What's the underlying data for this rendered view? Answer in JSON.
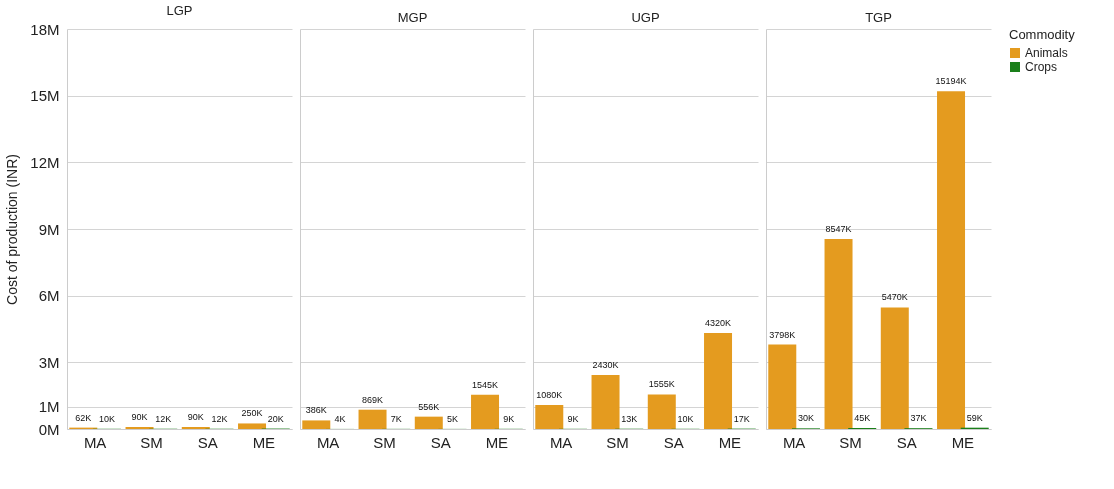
{
  "chart_data": [
    {
      "type": "bar",
      "title": "LGP",
      "ylabel": "Cost of production (INR)",
      "categories": [
        "MA",
        "SM",
        "SA",
        "ME"
      ],
      "series": [
        {
          "color": "#e49b1f",
          "values": [
            62000,
            90000,
            90000,
            250000
          ],
          "value_labels": [
            "62K",
            "90K",
            "90K",
            "250K"
          ]
        },
        {
          "color": "#1a7f1a",
          "values": [
            10000,
            12000,
            12000,
            20000
          ],
          "value_labels": [
            "10K",
            "12K",
            "12K",
            "20K"
          ]
        }
      ],
      "ylim": [
        0,
        18000000
      ],
      "yticks": [
        {
          "value": 0,
          "label": "0M"
        },
        {
          "value": 1000000,
          "label": "1M"
        },
        {
          "value": 3000000,
          "label": "3M"
        },
        {
          "value": 6000000,
          "label": "6M"
        },
        {
          "value": 9000000,
          "label": "9M"
        },
        {
          "value": 12000000,
          "label": "12M"
        },
        {
          "value": 15000000,
          "label": "15M"
        },
        {
          "value": 18000000,
          "label": "18M"
        }
      ],
      "grid": "y"
    },
    {
      "type": "bar",
      "title": "MGP",
      "categories": [
        "MA",
        "SM",
        "SA",
        "ME"
      ],
      "series": [
        {
          "color": "#e49b1f",
          "values": [
            386000,
            869000,
            556000,
            1545000
          ],
          "value_labels": [
            "386K",
            "869K",
            "556K",
            "1545K"
          ]
        },
        {
          "color": "#1a7f1a",
          "values": [
            4000,
            7000,
            5000,
            9000
          ],
          "value_labels": [
            "4K",
            "7K",
            "5K",
            "9K"
          ]
        }
      ],
      "ylim": [
        0,
        18000000
      ],
      "yticks": [
        {
          "value": 0,
          "label": null
        },
        {
          "value": 1000000,
          "label": null
        },
        {
          "value": 3000000,
          "label": null
        },
        {
          "value": 6000000,
          "label": null
        },
        {
          "value": 9000000,
          "label": null
        },
        {
          "value": 12000000,
          "label": null
        },
        {
          "value": 15000000,
          "label": null
        },
        {
          "value": 18000000,
          "label": null
        }
      ],
      "grid": "y",
      "tick_labels": "x"
    },
    {
      "type": "bar",
      "title": "UGP",
      "categories": [
        "MA",
        "SM",
        "SA",
        "ME"
      ],
      "series": [
        {
          "color": "#e49b1f",
          "values": [
            1080000,
            2430000,
            1555000,
            4320000
          ],
          "value_labels": [
            "1080K",
            "2430K",
            "1555K",
            "4320K"
          ]
        },
        {
          "color": "#1a7f1a",
          "values": [
            9000,
            13000,
            10000,
            17000
          ],
          "value_labels": [
            "9K",
            "13K",
            "10K",
            "17K"
          ]
        }
      ],
      "ylim": [
        0,
        18000000
      ],
      "yticks": [
        {
          "value": 0,
          "label": null
        },
        {
          "value": 1000000,
          "label": null
        },
        {
          "value": 3000000,
          "label": null
        },
        {
          "value": 6000000,
          "label": null
        },
        {
          "value": 9000000,
          "label": null
        },
        {
          "value": 12000000,
          "label": null
        },
        {
          "value": 15000000,
          "label": null
        },
        {
          "value": 18000000,
          "label": null
        }
      ],
      "grid": "y",
      "tick_labels": "x"
    },
    {
      "type": "bar",
      "title": "TGP",
      "legend_title": "Commodity",
      "categories": [
        "MA",
        "SM",
        "SA",
        "ME"
      ],
      "series": [
        {
          "name": "Animals",
          "color": "#e49b1f",
          "values": [
            3798000,
            8547000,
            5470000,
            15194000
          ],
          "value_labels": [
            "3798K",
            "8547K",
            "5470K",
            "15194K"
          ]
        },
        {
          "name": "Crops",
          "color": "#1a7f1a",
          "values": [
            30000,
            45000,
            37000,
            59000
          ],
          "value_labels": [
            "30K",
            "45K",
            "37K",
            "59K"
          ]
        }
      ],
      "ylim": [
        0,
        18000000
      ],
      "yticks": [
        {
          "value": 0,
          "label": null
        },
        {
          "value": 1000000,
          "label": null
        },
        {
          "value": 3000000,
          "label": null
        },
        {
          "value": 6000000,
          "label": null
        },
        {
          "value": 9000000,
          "label": null
        },
        {
          "value": 12000000,
          "label": null
        },
        {
          "value": 15000000,
          "label": null
        },
        {
          "value": 18000000,
          "label": null
        }
      ],
      "grid": "y",
      "legend": "right",
      "tick_labels": "x"
    }
  ]
}
